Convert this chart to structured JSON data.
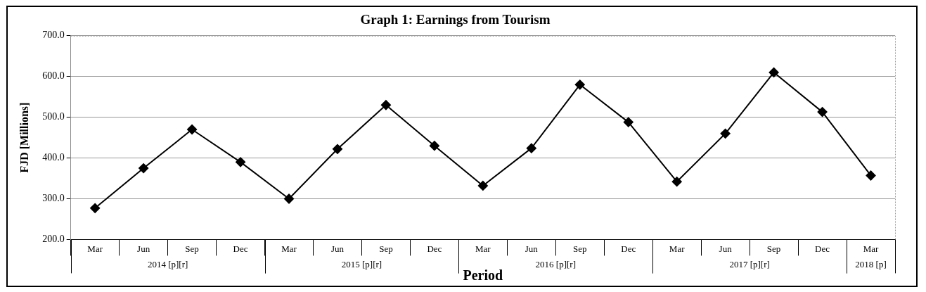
{
  "chart_data": {
    "type": "line",
    "title": "Graph 1: Earnings from Tourism",
    "xlabel": "Period",
    "ylabel": "FJD [Millions]",
    "categories": [
      "Mar",
      "Jun",
      "Sep",
      "Dec",
      "Mar",
      "Jun",
      "Sep",
      "Dec",
      "Mar",
      "Jun",
      "Sep",
      "Dec",
      "Mar",
      "Jun",
      "Sep",
      "Dec",
      "Mar"
    ],
    "series": [
      {
        "color": "#000000",
        "values": [
          277,
          375,
          470,
          390,
          300,
          422,
          530,
          430,
          332,
          424,
          580,
          488,
          342,
          460,
          610,
          513,
          357
        ]
      }
    ],
    "annotations": [
      "2014 [p][r]",
      "2015 [p][r]",
      "2016 [p][r]",
      "2017 [p][r]",
      "2018 [p]"
    ],
    "ylim": [
      200,
      700
    ],
    "yticks": [
      {
        "value": 200,
        "label": "200.0"
      },
      {
        "value": 300,
        "label": "300.0"
      },
      {
        "value": 400,
        "label": "400.0"
      },
      {
        "value": 500,
        "label": "500.0"
      },
      {
        "value": 600,
        "label": "600.0"
      },
      {
        "value": 700,
        "label": "700.0"
      }
    ],
    "grid": "y",
    "marker": "diamond",
    "line_style": "solid",
    "legend": false
  }
}
